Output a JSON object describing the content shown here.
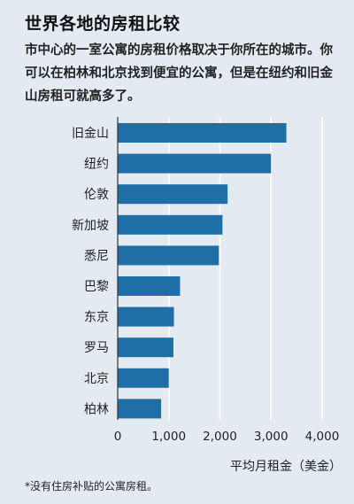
{
  "header": {
    "title": "世界各地的房租比较",
    "subtitle": "市中心的一室公寓的房租价格取决于你所在的城市。你可以在柏林和北京找到便宜的公寓，但是在纽约和旧金山房租可就高多了。"
  },
  "chart_data": {
    "type": "bar",
    "orientation": "horizontal",
    "categories": [
      "旧金山",
      "纽约",
      "伦敦",
      "新加坡",
      "悉尼",
      "巴黎",
      "东京",
      "罗马",
      "北京",
      "柏林"
    ],
    "values": [
      3300,
      3000,
      2150,
      2050,
      1980,
      1220,
      1100,
      1090,
      1000,
      850
    ],
    "xlabel": "平均月租金（美金）",
    "xlim": [
      0,
      4000
    ],
    "xticks": [
      "0",
      "1,000",
      "2,000",
      "3,000",
      "4,000"
    ],
    "grid": true,
    "bar_color": "#1f6fa6",
    "grid_color": "#ffffff"
  },
  "footnote": "*没有住房补贴的公寓房租。"
}
